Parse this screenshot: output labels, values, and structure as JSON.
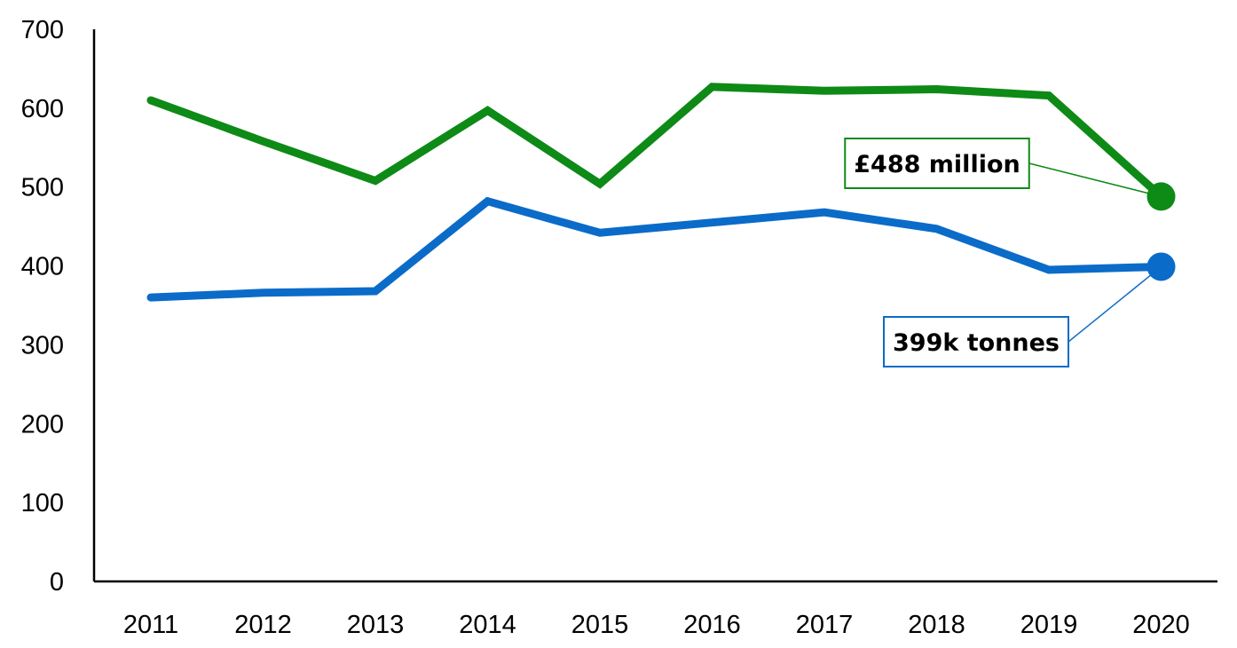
{
  "chart_data": {
    "type": "line",
    "title": "",
    "xlabel": "",
    "ylabel": "",
    "categories": [
      "2011",
      "2012",
      "2013",
      "2014",
      "2015",
      "2016",
      "2017",
      "2018",
      "2019",
      "2020"
    ],
    "ylim": [
      0,
      700
    ],
    "yticks": [
      0,
      100,
      200,
      300,
      400,
      500,
      600,
      700
    ],
    "grid": false,
    "legend": "none",
    "series": [
      {
        "color": "#0E8A16",
        "values": [
          610,
          558,
          508,
          597,
          504,
          627,
          622,
          624,
          616,
          488
        ],
        "callout": {
          "text": "£488 million",
          "point_index": 9
        }
      },
      {
        "color": "#0B6BC8",
        "values": [
          360,
          366,
          368,
          482,
          442,
          455,
          468,
          447,
          395,
          399
        ],
        "callout": {
          "text": "399k tonnes",
          "point_index": 9
        }
      }
    ]
  }
}
